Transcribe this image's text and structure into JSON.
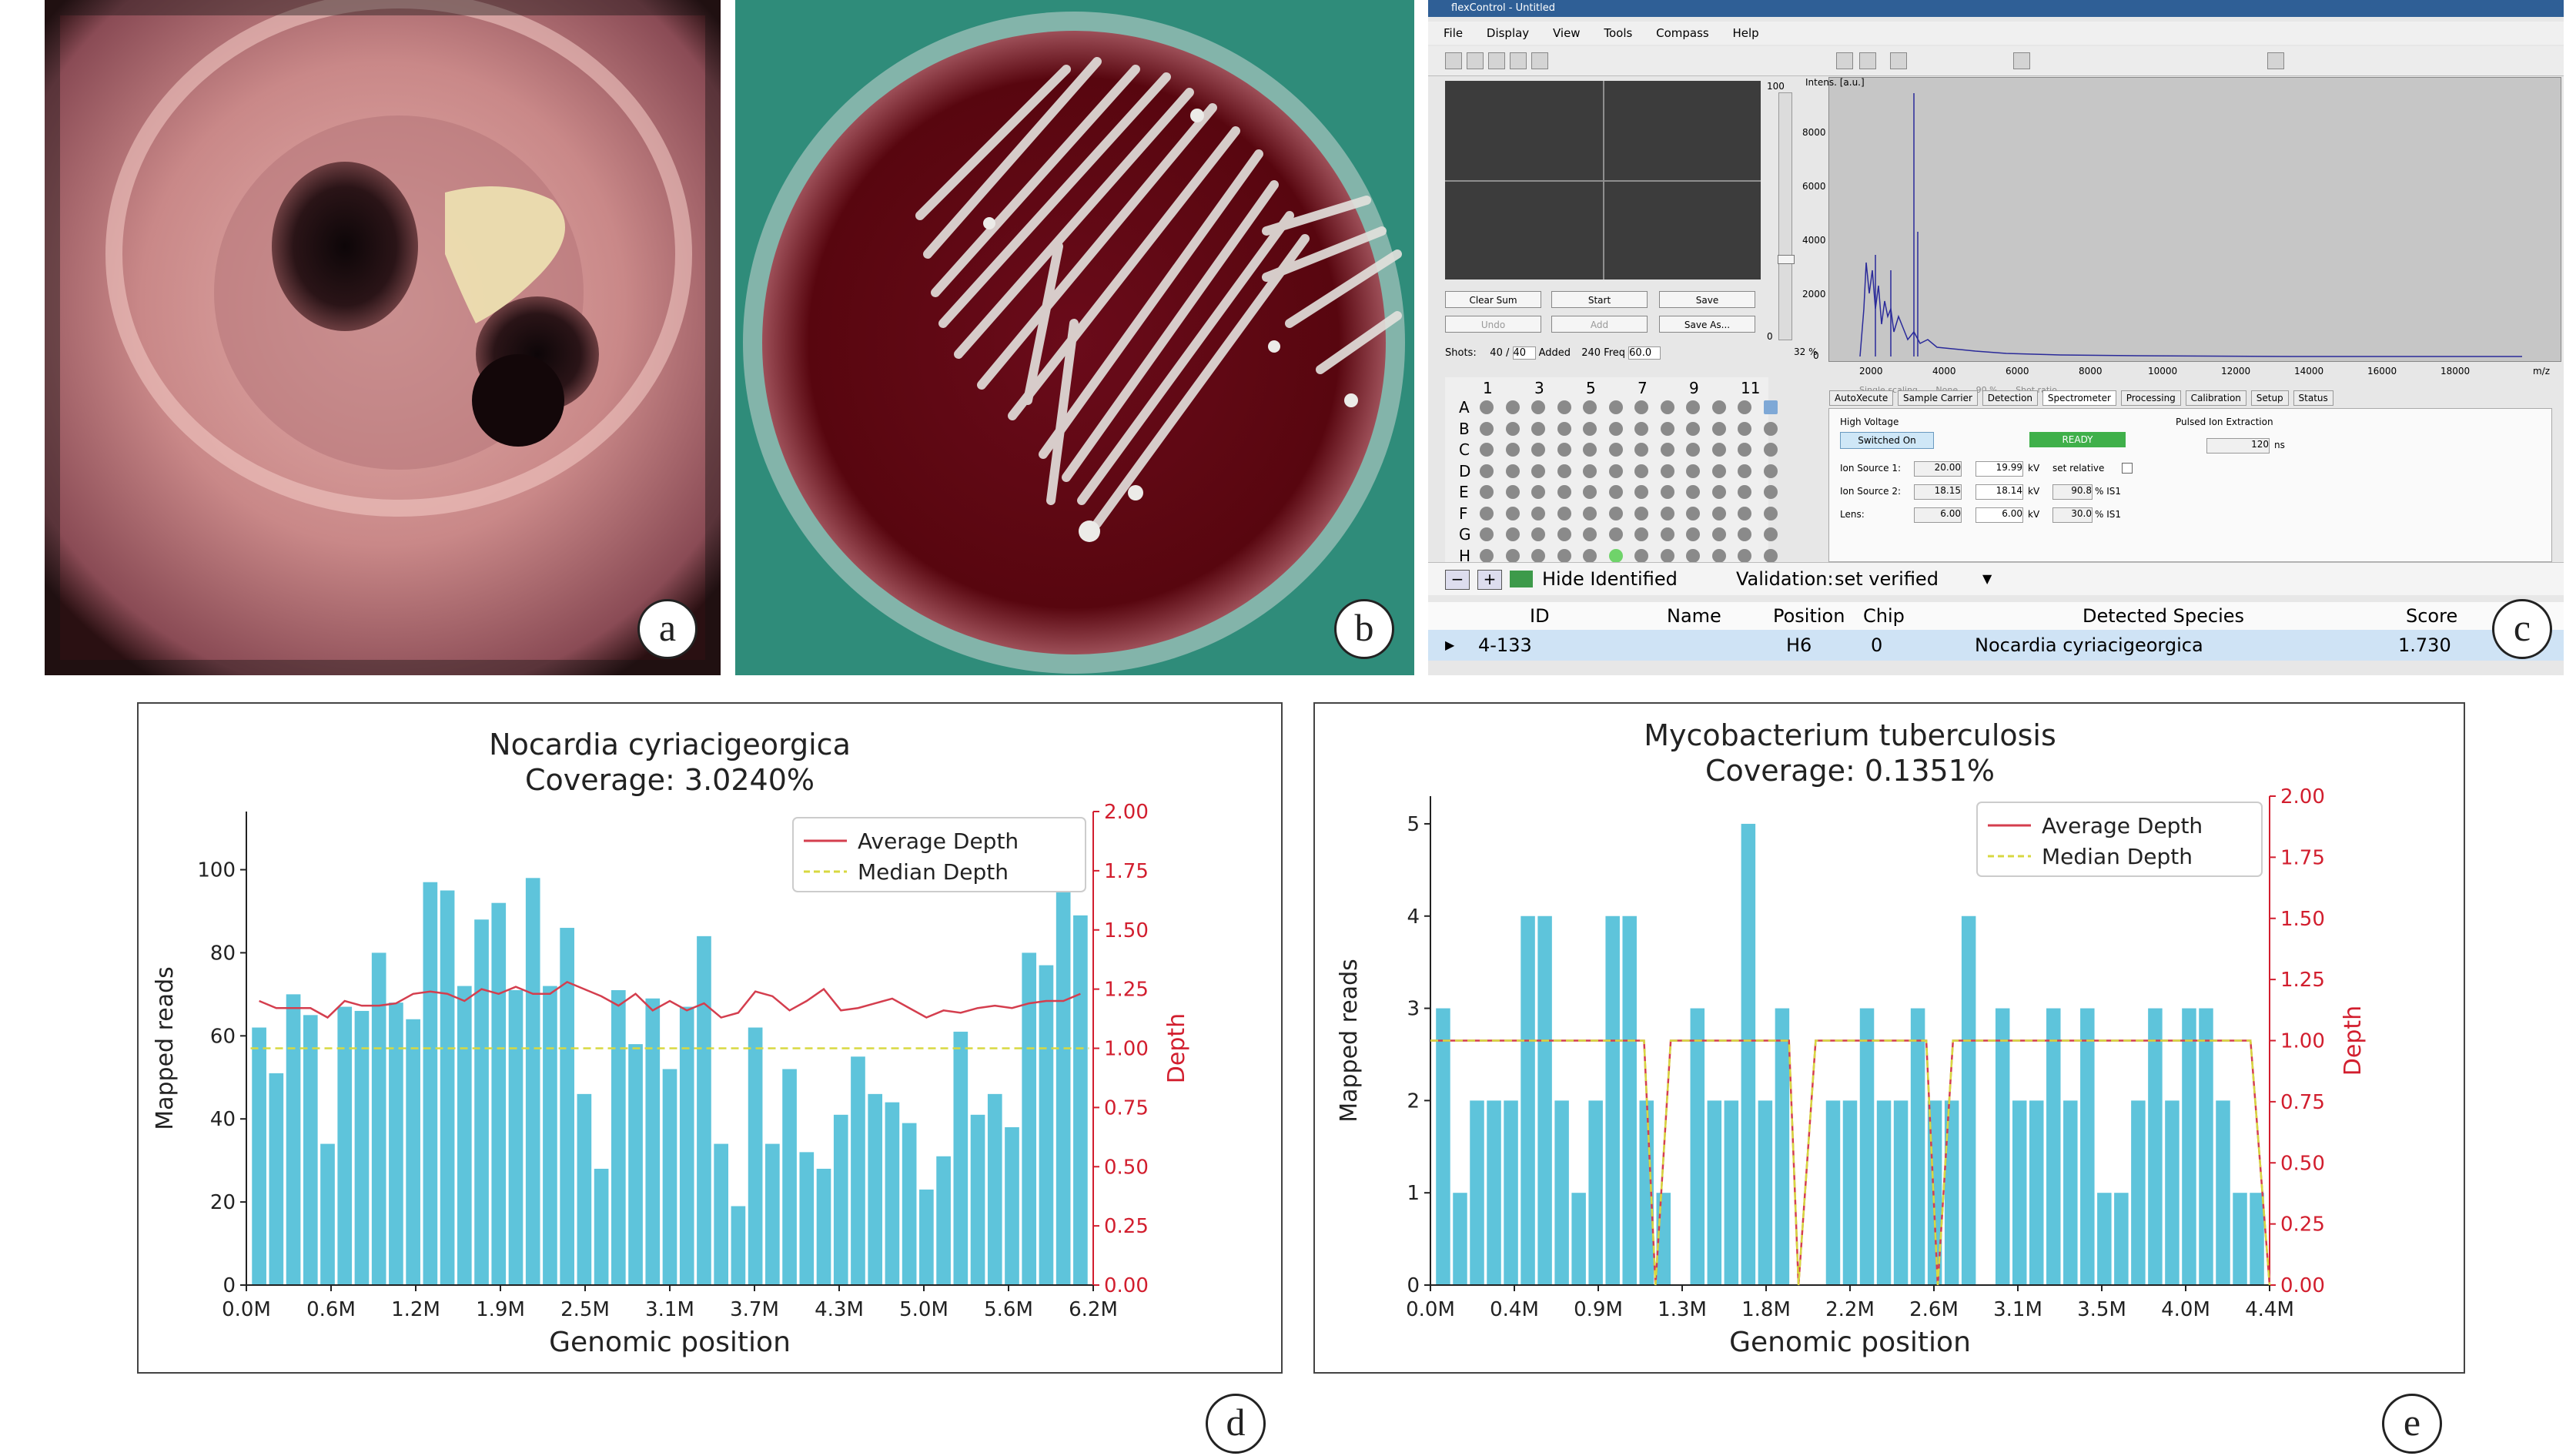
{
  "labels": {
    "a": "a",
    "b": "b",
    "c": "c",
    "d": "d",
    "e": "e"
  },
  "colors": {
    "bar": "#5ec4db",
    "avg": "#d43e4e",
    "median": "#d8d840",
    "depth_axis": "#d21e2e"
  },
  "software": {
    "window_title": "flexControl - Untitled",
    "menu": [
      "File",
      "Display",
      "View",
      "Tools",
      "Compass",
      "Help"
    ],
    "buttons": {
      "clear_sum": "Clear Sum",
      "start": "Start",
      "save": "Save",
      "undo": "Undo",
      "add": "Add",
      "save_as": "Save As..."
    },
    "shots": {
      "label": "Shots:",
      "value": "40",
      "of": "40",
      "added_label": "Added",
      "added": "240",
      "freq_label": "Freq",
      "freq": "60.0",
      "pct": "32 %",
      "scale_top": "100",
      "scale_bottom": "0"
    },
    "spectrum": {
      "ylabel": "Intens. [a.u.]",
      "yticks": [
        "8000",
        "6000",
        "4000",
        "2000",
        "0"
      ],
      "xticks": [
        "2000",
        "4000",
        "6000",
        "8000",
        "10000",
        "12000",
        "14000",
        "16000",
        "18000"
      ],
      "xunit": "m/z",
      "options": [
        "Single scaling",
        "None",
        "90 %",
        "Shot ratio"
      ]
    },
    "plate": {
      "cols": [
        "1",
        "3",
        "5",
        "7",
        "9",
        "11"
      ],
      "rows": [
        "A",
        "B",
        "C",
        "D",
        "E",
        "F",
        "G",
        "H"
      ]
    },
    "tabs": [
      "AutoXecute",
      "Sample Carrier",
      "Detection",
      "Spectrometer",
      "Processing",
      "Calibration",
      "Setup",
      "Status"
    ],
    "spectrometer": {
      "high_voltage": "High Voltage",
      "switched_on": "Switched On",
      "ready": "READY",
      "pulsed": "Pulsed Ion Extraction",
      "pulsed_val": "120",
      "pulsed_unit": "ns",
      "ion1": "Ion Source 1:",
      "ion1_set": "20.00",
      "ion1_act": "19.99",
      "kv": "kV",
      "set_relative": "set relative",
      "ion2": "Ion Source 2:",
      "ion2_set": "18.15",
      "ion2_act": "18.14",
      "ion2_pct": "90.8",
      "is1": "% IS1",
      "lens": "Lens:",
      "lens_set": "6.00",
      "lens_act": "6.00",
      "lens_pct": "30.0"
    },
    "bottom": {
      "hide_identified": "Hide Identified",
      "validation_label": "Validation:",
      "validation_value": "set verified"
    },
    "table": {
      "headers": [
        "ID",
        "Name",
        "Position",
        "Chip",
        "Detected Species",
        "Score"
      ],
      "row": [
        "4-133",
        "",
        "H6",
        "0",
        "Nocardia cyriacigeorgica",
        "1.730"
      ]
    }
  },
  "chart_data": [
    {
      "type": "bar",
      "title": "Nocardia cyriacigeorgica",
      "subtitle": "Coverage: 3.0240%",
      "xlabel": "Genomic position",
      "ylabel": "Mapped reads",
      "ylabel_right": "Depth",
      "xticks": [
        "0.0M",
        "0.6M",
        "1.2M",
        "1.9M",
        "2.5M",
        "3.1M",
        "3.7M",
        "4.3M",
        "5.0M",
        "5.6M",
        "6.2M"
      ],
      "yticks": [
        "0",
        "20",
        "40",
        "60",
        "80",
        "100"
      ],
      "yticks_right": [
        "0.00",
        "0.25",
        "0.50",
        "0.75",
        "1.00",
        "1.25",
        "1.50",
        "1.75",
        "2.00"
      ],
      "ylim": [
        0,
        114
      ],
      "ylim_right": [
        0,
        2.0
      ],
      "xlim": [
        0,
        6.2
      ],
      "legend": [
        "Average Depth",
        "Median Depth"
      ],
      "legend_position": "upper right",
      "values": [
        62,
        51,
        70,
        65,
        34,
        67,
        66,
        80,
        68,
        64,
        97,
        95,
        72,
        88,
        92,
        71,
        98,
        72,
        86,
        46,
        28,
        71,
        58,
        69,
        52,
        67,
        84,
        34,
        19,
        62,
        34,
        52,
        32,
        28,
        41,
        55,
        46,
        44,
        39,
        23,
        31,
        61,
        41,
        46,
        38,
        80,
        77,
        104,
        89
      ],
      "average_depth": [
        1.2,
        1.17,
        1.17,
        1.17,
        1.13,
        1.2,
        1.18,
        1.18,
        1.19,
        1.23,
        1.24,
        1.23,
        1.2,
        1.25,
        1.23,
        1.26,
        1.23,
        1.23,
        1.28,
        1.25,
        1.22,
        1.18,
        1.23,
        1.16,
        1.2,
        1.16,
        1.19,
        1.13,
        1.15,
        1.24,
        1.22,
        1.16,
        1.2,
        1.25,
        1.16,
        1.17,
        1.19,
        1.21,
        1.17,
        1.13,
        1.16,
        1.15,
        1.17,
        1.18,
        1.17,
        1.19,
        1.2,
        1.2,
        1.23
      ],
      "median_depth": 1.0
    },
    {
      "type": "bar",
      "title": "Mycobacterium tuberculosis",
      "subtitle": "Coverage: 0.1351%",
      "xlabel": "Genomic position",
      "ylabel": "Mapped reads",
      "ylabel_right": "Depth",
      "xticks": [
        "0.0M",
        "0.4M",
        "0.9M",
        "1.3M",
        "1.8M",
        "2.2M",
        "2.6M",
        "3.1M",
        "3.5M",
        "4.0M",
        "4.4M"
      ],
      "yticks": [
        "0",
        "1",
        "2",
        "3",
        "4",
        "5"
      ],
      "yticks_right": [
        "0.00",
        "0.25",
        "0.50",
        "0.75",
        "1.00",
        "1.25",
        "1.50",
        "1.75",
        "2.00"
      ],
      "ylim": [
        0,
        5.3
      ],
      "ylim_right": [
        0,
        2.0
      ],
      "xlim": [
        0,
        4.4
      ],
      "legend": [
        "Average Depth",
        "Median Depth"
      ],
      "legend_position": "upper right",
      "values": [
        3,
        1,
        2,
        2,
        2,
        4,
        4,
        2,
        1,
        2,
        4,
        4,
        2,
        1,
        0,
        3,
        2,
        2,
        5,
        2,
        3,
        0,
        0,
        2,
        2,
        3,
        2,
        2,
        3,
        2,
        2,
        4,
        0,
        3,
        2,
        2,
        3,
        2,
        3,
        1,
        1,
        2,
        3,
        2,
        3,
        3,
        2,
        1,
        1
      ],
      "depth_segments": [
        [
          0.0,
          1.0
        ],
        [
          1.12,
          1.0
        ],
        [
          1.18,
          0.0
        ],
        [
          1.26,
          1.0
        ],
        [
          1.88,
          1.0
        ],
        [
          1.93,
          0.0
        ],
        [
          2.02,
          1.0
        ],
        [
          2.6,
          1.0
        ],
        [
          2.66,
          0.0
        ],
        [
          2.74,
          1.0
        ],
        [
          4.3,
          1.0
        ],
        [
          4.4,
          0.0
        ]
      ]
    }
  ]
}
